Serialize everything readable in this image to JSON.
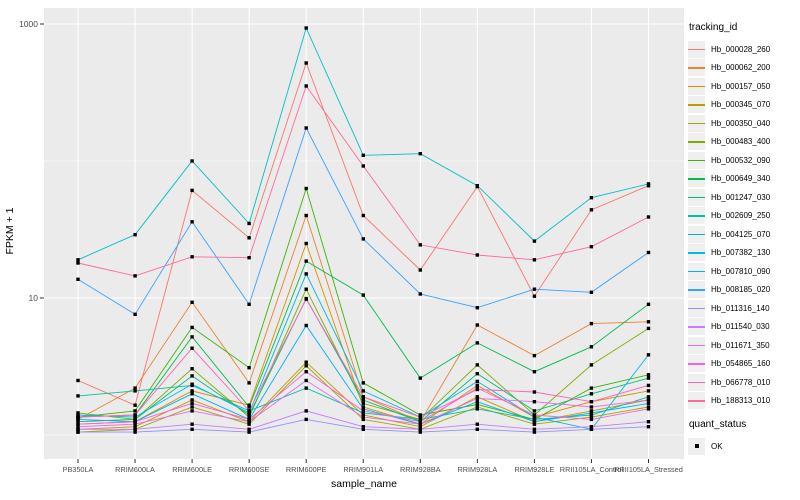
{
  "legend": {
    "tracking_title": "tracking_id",
    "quant_title": "quant_status",
    "quant_items": [
      {
        "label": "OK",
        "marker": "black-square"
      }
    ]
  },
  "chart_data": {
    "type": "line",
    "title": "",
    "xlabel": "sample_name",
    "ylabel": "FPKM + 1",
    "y_scale": "log10",
    "y_tick_labels": [
      "1000",
      "10"
    ],
    "y_tick_values": [
      1000,
      10
    ],
    "y_minor_gridlines": [
      100,
      1
    ],
    "ylim": [
      0.75,
      1300
    ],
    "grid": "white-on-gray-panel",
    "panel_bg": "#EBEBEB",
    "legend_position": "right",
    "point_marker": "black-square",
    "categories": [
      "PB350LA",
      "RRIM600LA",
      "RRIM600LE",
      "RRIM600SE",
      "RRIM600PE",
      "RRIM901LA",
      "RRIM928BA",
      "RRIM928LA",
      "RRIM928LE",
      "RRII105LA_Control",
      "RRII105LA_Stressed"
    ],
    "series": [
      {
        "name": "Hb_000028_260",
        "color": "#F8766D",
        "values": [
          2.5,
          1.65,
          61,
          27.5,
          519,
          40,
          16,
          65,
          10.3,
          44,
          66
        ]
      },
      {
        "name": "Hb_000062_200",
        "color": "#EA8331",
        "values": [
          1.3,
          2.2,
          9.3,
          2.4,
          40,
          1.9,
          1.25,
          6.35,
          3.8,
          6.5,
          6.7
        ]
      },
      {
        "name": "Hb_000157_050",
        "color": "#D89000",
        "values": [
          1.2,
          1.25,
          2.1,
          1.65,
          25,
          1.6,
          1.2,
          2.3,
          1.35,
          1.75,
          2.1
        ]
      },
      {
        "name": "Hb_000345_070",
        "color": "#C09B00",
        "values": [
          1.1,
          1.15,
          1.8,
          1.25,
          3.4,
          1.4,
          1.15,
          1.9,
          1.25,
          1.5,
          1.8
        ]
      },
      {
        "name": "Hb_000350_040",
        "color": "#A3A500",
        "values": [
          1.05,
          1.1,
          1.6,
          1.2,
          3.2,
          1.3,
          1.1,
          1.6,
          1.2,
          1.35,
          1.6
        ]
      },
      {
        "name": "Hb_000483_400",
        "color": "#7CAE00",
        "values": [
          1.45,
          1.3,
          3.05,
          1.35,
          11.6,
          1.7,
          1.3,
          3.25,
          1.4,
          3.25,
          6.0
        ]
      },
      {
        "name": "Hb_000532_090",
        "color": "#39B600",
        "values": [
          1.35,
          1.5,
          6.1,
          3.1,
          63,
          2.4,
          1.4,
          1.67,
          1.3,
          2.2,
          2.75
        ]
      },
      {
        "name": "Hb_000649_340",
        "color": "#00BB4E",
        "values": [
          1.35,
          1.4,
          5.2,
          1.6,
          18.6,
          10.5,
          2.6,
          4.7,
          2.9,
          4.4,
          9.0
        ]
      },
      {
        "name": "Hb_001247_030",
        "color": "#00BF7D",
        "values": [
          1.25,
          1.3,
          2.7,
          1.4,
          9.9,
          1.8,
          1.25,
          2.8,
          1.5,
          2.0,
          2.6
        ]
      },
      {
        "name": "Hb_002609_250",
        "color": "#00C1A3",
        "values": [
          1.93,
          2.1,
          2.3,
          1.5,
          2.2,
          1.45,
          1.3,
          1.55,
          1.3,
          1.4,
          1.9
        ]
      },
      {
        "name": "Hb_004125_070",
        "color": "#00BFC4",
        "values": [
          19,
          29,
          100,
          35,
          935,
          110,
          113,
          66,
          26,
          54,
          68
        ]
      },
      {
        "name": "Hb_007382_130",
        "color": "#00BAE0",
        "values": [
          1.4,
          1.35,
          2.35,
          1.45,
          15,
          2.1,
          1.35,
          2.46,
          1.35,
          1.1,
          3.85
        ]
      },
      {
        "name": "Hb_007810_090",
        "color": "#00B0F6",
        "values": [
          1.3,
          1.25,
          2.0,
          1.3,
          6.3,
          1.55,
          1.2,
          1.75,
          1.25,
          1.45,
          1.7
        ]
      },
      {
        "name": "Hb_008185_020",
        "color": "#35A2FF",
        "values": [
          13.7,
          7.6,
          36,
          9.0,
          174,
          27,
          10.7,
          8.5,
          11.6,
          11,
          21.5
        ]
      },
      {
        "name": "Hb_011316_140",
        "color": "#9590FF",
        "values": [
          1.05,
          1.05,
          1.1,
          1.05,
          1.3,
          1.1,
          1.05,
          1.1,
          1.05,
          1.1,
          1.15
        ]
      },
      {
        "name": "Hb_011540_030",
        "color": "#C77CFF",
        "values": [
          1.1,
          1.1,
          1.2,
          1.1,
          1.5,
          1.15,
          1.1,
          1.2,
          1.1,
          1.15,
          1.25
        ]
      },
      {
        "name": "Hb_011671_350",
        "color": "#E76BF3",
        "values": [
          1.15,
          1.2,
          1.5,
          1.25,
          2.5,
          1.35,
          1.2,
          1.85,
          1.75,
          1.6,
          1.8
        ]
      },
      {
        "name": "Hb_054865_160",
        "color": "#FA62DB",
        "values": [
          1.2,
          1.25,
          1.7,
          1.3,
          2.9,
          1.5,
          1.25,
          2.2,
          1.4,
          1.3,
          1.55
        ]
      },
      {
        "name": "Hb_066778_010",
        "color": "#FF62BC",
        "values": [
          1.35,
          1.4,
          4.3,
          1.5,
          9.8,
          1.9,
          1.35,
          2.15,
          2.06,
          1.75,
          2.3
        ]
      },
      {
        "name": "Hb_188313_010",
        "color": "#FF6A98",
        "values": [
          18,
          14.5,
          20,
          19.7,
          353,
          92,
          24.4,
          20.6,
          19,
          23.7,
          39
        ]
      }
    ]
  }
}
